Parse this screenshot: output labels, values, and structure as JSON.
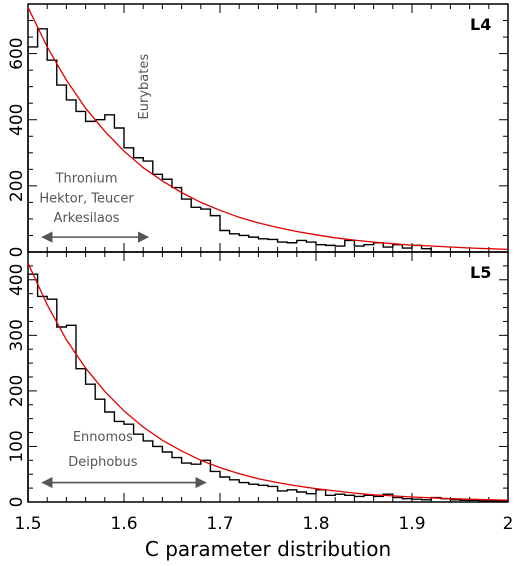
{
  "chart_data": [
    {
      "type": "line",
      "panel_label": "L4",
      "xlim": [
        1.5,
        2.0
      ],
      "ylim": [
        0,
        750
      ],
      "yticks": [
        0,
        200,
        400,
        600
      ],
      "xlabel": "",
      "hist_bin_width": 0.01,
      "histogram": [
        {
          "x": 1.5,
          "y": 620
        },
        {
          "x": 1.51,
          "y": 675
        },
        {
          "x": 1.52,
          "y": 580
        },
        {
          "x": 1.53,
          "y": 505
        },
        {
          "x": 1.54,
          "y": 460
        },
        {
          "x": 1.55,
          "y": 425
        },
        {
          "x": 1.56,
          "y": 395
        },
        {
          "x": 1.57,
          "y": 400
        },
        {
          "x": 1.58,
          "y": 415
        },
        {
          "x": 1.59,
          "y": 375
        },
        {
          "x": 1.6,
          "y": 315
        },
        {
          "x": 1.61,
          "y": 285
        },
        {
          "x": 1.62,
          "y": 275
        },
        {
          "x": 1.63,
          "y": 235
        },
        {
          "x": 1.64,
          "y": 220
        },
        {
          "x": 1.65,
          "y": 195
        },
        {
          "x": 1.66,
          "y": 160
        },
        {
          "x": 1.67,
          "y": 135
        },
        {
          "x": 1.68,
          "y": 130
        },
        {
          "x": 1.69,
          "y": 110
        },
        {
          "x": 1.7,
          "y": 65
        },
        {
          "x": 1.71,
          "y": 55
        },
        {
          "x": 1.72,
          "y": 50
        },
        {
          "x": 1.73,
          "y": 45
        },
        {
          "x": 1.74,
          "y": 40
        },
        {
          "x": 1.75,
          "y": 38
        },
        {
          "x": 1.76,
          "y": 30
        },
        {
          "x": 1.77,
          "y": 28
        },
        {
          "x": 1.78,
          "y": 35
        },
        {
          "x": 1.79,
          "y": 30
        },
        {
          "x": 1.8,
          "y": 22
        },
        {
          "x": 1.81,
          "y": 20
        },
        {
          "x": 1.82,
          "y": 18
        },
        {
          "x": 1.83,
          "y": 35
        },
        {
          "x": 1.84,
          "y": 18
        },
        {
          "x": 1.85,
          "y": 22
        },
        {
          "x": 1.86,
          "y": 28
        },
        {
          "x": 1.87,
          "y": 15
        },
        {
          "x": 1.88,
          "y": 22
        },
        {
          "x": 1.89,
          "y": 12
        },
        {
          "x": 1.9,
          "y": 20
        },
        {
          "x": 1.91,
          "y": 10
        },
        {
          "x": 1.92,
          "y": 0
        }
      ],
      "fit_curve": {
        "color": "#e00000",
        "points": [
          {
            "x": 1.5,
            "y": 740
          },
          {
            "x": 1.52,
            "y": 620
          },
          {
            "x": 1.54,
            "y": 520
          },
          {
            "x": 1.56,
            "y": 435
          },
          {
            "x": 1.58,
            "y": 365
          },
          {
            "x": 1.6,
            "y": 305
          },
          {
            "x": 1.62,
            "y": 255
          },
          {
            "x": 1.64,
            "y": 215
          },
          {
            "x": 1.66,
            "y": 180
          },
          {
            "x": 1.68,
            "y": 150
          },
          {
            "x": 1.7,
            "y": 126
          },
          {
            "x": 1.72,
            "y": 105
          },
          {
            "x": 1.74,
            "y": 88
          },
          {
            "x": 1.76,
            "y": 74
          },
          {
            "x": 1.78,
            "y": 62
          },
          {
            "x": 1.8,
            "y": 52
          },
          {
            "x": 1.82,
            "y": 43
          },
          {
            "x": 1.84,
            "y": 36
          },
          {
            "x": 1.86,
            "y": 30
          },
          {
            "x": 1.88,
            "y": 25
          },
          {
            "x": 1.9,
            "y": 21
          },
          {
            "x": 1.92,
            "y": 18
          },
          {
            "x": 1.94,
            "y": 15
          },
          {
            "x": 1.96,
            "y": 12
          },
          {
            "x": 1.98,
            "y": 10
          },
          {
            "x": 2.0,
            "y": 8
          }
        ]
      },
      "annotations": {
        "vertical_label": {
          "text": "Eurybates",
          "x": 1.625,
          "y": 500
        },
        "text_lines": [
          {
            "text": "Thronium",
            "x": 1.561,
            "y": 210
          },
          {
            "text": "Hektor, Teucer",
            "x": 1.561,
            "y": 150
          },
          {
            "text": "Arkesilaos",
            "x": 1.561,
            "y": 90
          }
        ],
        "arrow": {
          "x1": 1.515,
          "x2": 1.625,
          "y": 45
        }
      }
    },
    {
      "type": "line",
      "panel_label": "L5",
      "xlim": [
        1.5,
        2.0
      ],
      "ylim": [
        0,
        450
      ],
      "yticks": [
        0,
        100,
        200,
        300,
        400
      ],
      "xticks": [
        1.5,
        1.6,
        1.7,
        1.8,
        1.9,
        2.0
      ],
      "xtick_labels": [
        "1.5",
        "1.6",
        "1.7",
        "1.8",
        "1.9",
        "2"
      ],
      "xlabel": "C parameter distribution",
      "hist_bin_width": 0.01,
      "histogram": [
        {
          "x": 1.5,
          "y": 410
        },
        {
          "x": 1.51,
          "y": 370
        },
        {
          "x": 1.52,
          "y": 365
        },
        {
          "x": 1.53,
          "y": 315
        },
        {
          "x": 1.54,
          "y": 318
        },
        {
          "x": 1.55,
          "y": 240
        },
        {
          "x": 1.56,
          "y": 212
        },
        {
          "x": 1.57,
          "y": 185
        },
        {
          "x": 1.58,
          "y": 162
        },
        {
          "x": 1.59,
          "y": 145
        },
        {
          "x": 1.6,
          "y": 140
        },
        {
          "x": 1.61,
          "y": 122
        },
        {
          "x": 1.62,
          "y": 110
        },
        {
          "x": 1.63,
          "y": 100
        },
        {
          "x": 1.64,
          "y": 90
        },
        {
          "x": 1.65,
          "y": 80
        },
        {
          "x": 1.66,
          "y": 70
        },
        {
          "x": 1.67,
          "y": 68
        },
        {
          "x": 1.68,
          "y": 75
        },
        {
          "x": 1.69,
          "y": 55
        },
        {
          "x": 1.7,
          "y": 45
        },
        {
          "x": 1.71,
          "y": 40
        },
        {
          "x": 1.72,
          "y": 35
        },
        {
          "x": 1.73,
          "y": 32
        },
        {
          "x": 1.74,
          "y": 30
        },
        {
          "x": 1.75,
          "y": 28
        },
        {
          "x": 1.76,
          "y": 20
        },
        {
          "x": 1.77,
          "y": 22
        },
        {
          "x": 1.78,
          "y": 18
        },
        {
          "x": 1.79,
          "y": 15
        },
        {
          "x": 1.8,
          "y": 22
        },
        {
          "x": 1.81,
          "y": 12
        },
        {
          "x": 1.82,
          "y": 14
        },
        {
          "x": 1.83,
          "y": 12
        },
        {
          "x": 1.84,
          "y": 10
        },
        {
          "x": 1.85,
          "y": 12
        },
        {
          "x": 1.86,
          "y": 10
        },
        {
          "x": 1.87,
          "y": 14
        },
        {
          "x": 1.88,
          "y": 8
        },
        {
          "x": 1.89,
          "y": 6
        },
        {
          "x": 1.9,
          "y": 5
        },
        {
          "x": 1.91,
          "y": 4
        },
        {
          "x": 1.92,
          "y": 8
        },
        {
          "x": 1.93,
          "y": 6
        },
        {
          "x": 1.94,
          "y": 4
        },
        {
          "x": 1.95,
          "y": 3
        },
        {
          "x": 1.96,
          "y": 3
        },
        {
          "x": 1.97,
          "y": 2
        },
        {
          "x": 1.98,
          "y": 2
        },
        {
          "x": 1.99,
          "y": 2
        }
      ],
      "fit_curve": {
        "color": "#e00000",
        "points": [
          {
            "x": 1.5,
            "y": 430
          },
          {
            "x": 1.52,
            "y": 355
          },
          {
            "x": 1.54,
            "y": 292
          },
          {
            "x": 1.56,
            "y": 241
          },
          {
            "x": 1.58,
            "y": 199
          },
          {
            "x": 1.6,
            "y": 164
          },
          {
            "x": 1.62,
            "y": 135
          },
          {
            "x": 1.64,
            "y": 111
          },
          {
            "x": 1.66,
            "y": 92
          },
          {
            "x": 1.68,
            "y": 75
          },
          {
            "x": 1.7,
            "y": 62
          },
          {
            "x": 1.72,
            "y": 51
          },
          {
            "x": 1.74,
            "y": 42
          },
          {
            "x": 1.76,
            "y": 35
          },
          {
            "x": 1.78,
            "y": 29
          },
          {
            "x": 1.8,
            "y": 24
          },
          {
            "x": 1.82,
            "y": 20
          },
          {
            "x": 1.84,
            "y": 16
          },
          {
            "x": 1.86,
            "y": 13
          },
          {
            "x": 1.88,
            "y": 11
          },
          {
            "x": 1.9,
            "y": 9
          },
          {
            "x": 1.92,
            "y": 7.5
          },
          {
            "x": 1.94,
            "y": 6
          },
          {
            "x": 1.96,
            "y": 5
          },
          {
            "x": 1.98,
            "y": 4
          },
          {
            "x": 2.0,
            "y": 3.5
          }
        ]
      },
      "annotations": {
        "text_lines": [
          {
            "text": "Ennomos",
            "x": 1.578,
            "y": 110
          },
          {
            "text": "Deiphobus",
            "x": 1.578,
            "y": 65
          }
        ],
        "arrow": {
          "x1": 1.515,
          "x2": 1.685,
          "y": 35
        }
      }
    }
  ],
  "colors": {
    "histogram": "#000000",
    "fit": "#e00000",
    "annotation": "#555555"
  }
}
